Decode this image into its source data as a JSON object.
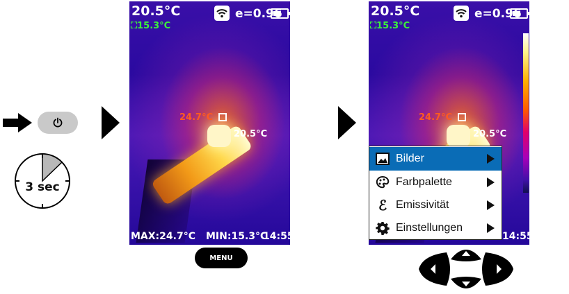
{
  "instruction": {
    "hold_duration": "3 sec",
    "power_icon": "power-icon"
  },
  "screen_left": {
    "temp_top": "20.5°C",
    "temp_min_small": "15.3°C",
    "emissivity": "e=0.96",
    "spot_left": "24.7°C",
    "spot_right": "20.5°C",
    "max": "MAX:24.7°C",
    "min": "MIN:15.3°C",
    "time": "14:55"
  },
  "screen_right": {
    "temp_top": "20.5°C",
    "temp_min_small": "15.3°C",
    "emissivity": "e=0.96",
    "spot_left": "24.7°C",
    "spot_right": "20.5°C",
    "time": "14:55"
  },
  "menu_button": "MENU",
  "menu": {
    "items": [
      {
        "label": "Bilder",
        "icon": "image-icon",
        "selected": true
      },
      {
        "label": "Farbpalette",
        "icon": "palette-icon",
        "selected": false
      },
      {
        "label": "Emissivität",
        "icon": "epsilon-icon",
        "selected": false
      },
      {
        "label": "Einstellungen",
        "icon": "gear-icon",
        "selected": false
      }
    ]
  },
  "colors": {
    "menu_selected": "#0a6cb6",
    "min_temp_green": "#3cf03c"
  }
}
